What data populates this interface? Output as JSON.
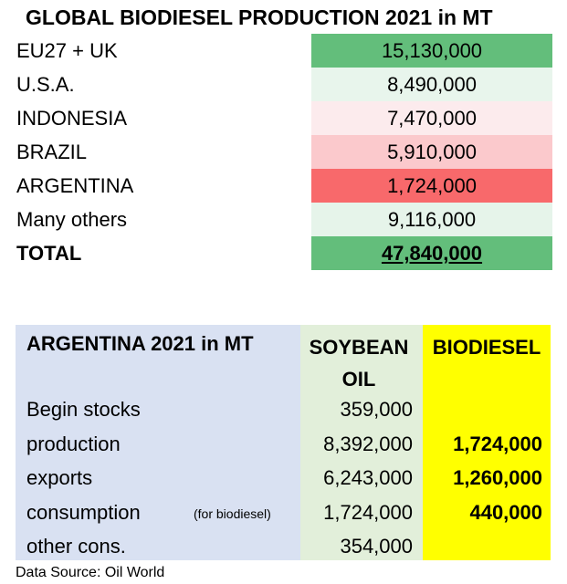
{
  "chart_data": [
    {
      "type": "table",
      "title": "GLOBAL BIODIESEL PRODUCTION 2021 in MT",
      "rows": [
        {
          "label": "EU27 + UK",
          "value": "15,130,000",
          "color": "#63be7b"
        },
        {
          "label": "U.S.A.",
          "value": "8,490,000",
          "color": "#e8f5ec"
        },
        {
          "label": "INDONESIA",
          "value": "7,470,000",
          "color": "#fcebed"
        },
        {
          "label": "BRAZIL",
          "value": "5,910,000",
          "color": "#fbc9cc"
        },
        {
          "label": "ARGENTINA",
          "value": "1,724,000",
          "color": "#f8696b"
        },
        {
          "label": "Many others",
          "value": "9,116,000",
          "color": "#e6f4ea"
        },
        {
          "label": "TOTAL",
          "value": "47,840,000",
          "color": "#63be7b"
        }
      ]
    },
    {
      "type": "table",
      "title": "ARGENTINA 2021 in MT",
      "columns": [
        "SOYBEAN OIL",
        "BIODIESEL"
      ],
      "column_head_lines": [
        [
          "SOYBEAN",
          "OIL"
        ],
        [
          "BIODIESEL"
        ]
      ],
      "rows": [
        {
          "label": "Begin stocks",
          "note": "",
          "soybean_oil": "359,000",
          "biodiesel": ""
        },
        {
          "label": "production",
          "note": "",
          "soybean_oil": "8,392,000",
          "biodiesel": "1,724,000"
        },
        {
          "label": "exports",
          "note": "",
          "soybean_oil": "6,243,000",
          "biodiesel": "1,260,000"
        },
        {
          "label": "consumption",
          "note": "(for biodiesel)",
          "soybean_oil": "1,724,000",
          "biodiesel": "440,000"
        },
        {
          "label": "other cons.",
          "note": "",
          "soybean_oil": "354,000",
          "biodiesel": ""
        }
      ],
      "colors": {
        "label_bg": "#d9e1f2",
        "soybean_bg": "#e2efda",
        "biodiesel_bg": "#ffff00"
      }
    }
  ],
  "source": "Data Source: Oil World"
}
